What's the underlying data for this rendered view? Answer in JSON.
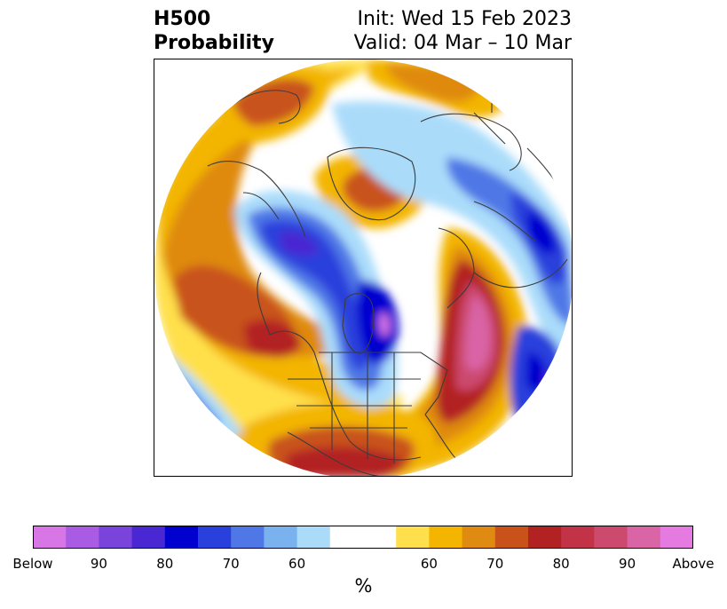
{
  "title": {
    "left_line1": "H500",
    "left_line2": "Probability",
    "right_line1": "Init: Wed 15 Feb 2023",
    "right_line2": "Valid: 04 Mar – 10 Mar"
  },
  "colorbar": {
    "unit_label": "%",
    "segments": [
      "#d876e6",
      "#a95be4",
      "#7a43dc",
      "#4927d2",
      "#0000cf",
      "#2a40dc",
      "#4f78e6",
      "#7ab2f0",
      "#aadcfa",
      "#ffffff",
      "#ffffff",
      "#ffe04c",
      "#f3b500",
      "#df8a10",
      "#c9521a",
      "#b32223",
      "#c23347",
      "#cc4a6e",
      "#d964a6",
      "#e57be0"
    ],
    "ticks": [
      "Below",
      "90",
      "80",
      "70",
      "60",
      "60",
      "70",
      "80",
      "90",
      "Above"
    ]
  },
  "colors": {
    "coast": "#3c3c3c",
    "frame": "#000000"
  }
}
